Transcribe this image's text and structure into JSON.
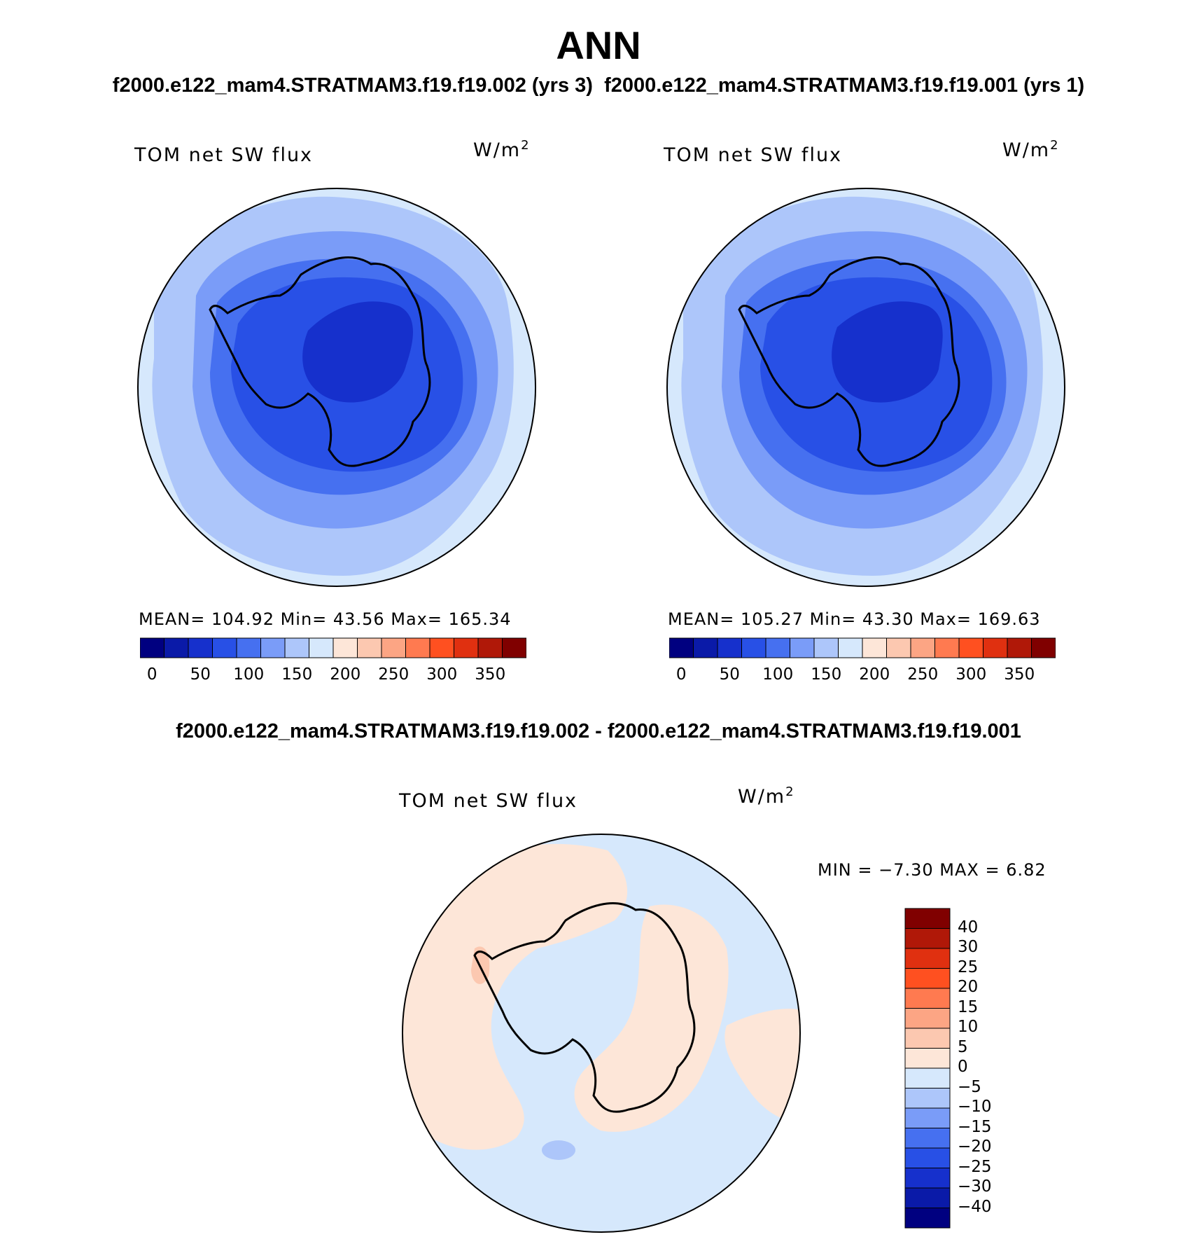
{
  "header": {
    "title": "ANN",
    "subtitle_left": "f2000.e122_mam4.STRATMAM3.f19.f19.002 (yrs 3)",
    "subtitle_right": "f2000.e122_mam4.STRATMAM3.f19.f19.001 (yrs 1)",
    "diff_title": "f2000.e122_mam4.STRATMAM3.f19.f19.002 - f2000.e122_mam4.STRATMAM3.f19.f19.001"
  },
  "panels": [
    {
      "label": "TOM net SW flux",
      "units_base": "W/m",
      "units_exp": "2",
      "stats": "MEAN= 104.92   Min=   43.56   Max= 165.34",
      "mean": 104.92,
      "min": 43.56,
      "max": 165.34
    },
    {
      "label": "TOM net SW flux",
      "units_base": "W/m",
      "units_exp": "2",
      "stats": "MEAN= 105.27   Min=   43.30   Max= 169.63",
      "mean": 105.27,
      "min": 43.3,
      "max": 169.63
    }
  ],
  "diff_panel": {
    "label": "TOM net SW flux",
    "units_base": "W/m",
    "units_exp": "2",
    "stats": "MIN =   −7.30 MAX =    6.82",
    "min": -7.3,
    "max": 6.82
  },
  "colorbar_horizontal": {
    "colors": [
      "#000080",
      "#0a1aa8",
      "#1630cc",
      "#2850e6",
      "#4670f0",
      "#7a9cf8",
      "#adc6fa",
      "#d6e8fc",
      "#fde6d8",
      "#fcc8b0",
      "#fca584",
      "#ff7a50",
      "#ff5020",
      "#e03010",
      "#b01808",
      "#800000"
    ],
    "tick_labels": [
      "0",
      "50",
      "100",
      "150",
      "200",
      "250",
      "300",
      "350"
    ]
  },
  "colorbar_vertical": {
    "colors_top_to_bottom": [
      "#800000",
      "#b01808",
      "#e03010",
      "#ff5020",
      "#ff7a50",
      "#fca584",
      "#fcc8b0",
      "#fde6d8",
      "#d6e8fc",
      "#adc6fa",
      "#7a9cf8",
      "#4670f0",
      "#2850e6",
      "#1630cc",
      "#0a1aa8",
      "#000080"
    ],
    "tick_labels": [
      "40",
      "30",
      "25",
      "20",
      "15",
      "10",
      "5",
      "0",
      "−5",
      "−10",
      "−15",
      "−20",
      "−25",
      "−30",
      "−40"
    ]
  }
}
